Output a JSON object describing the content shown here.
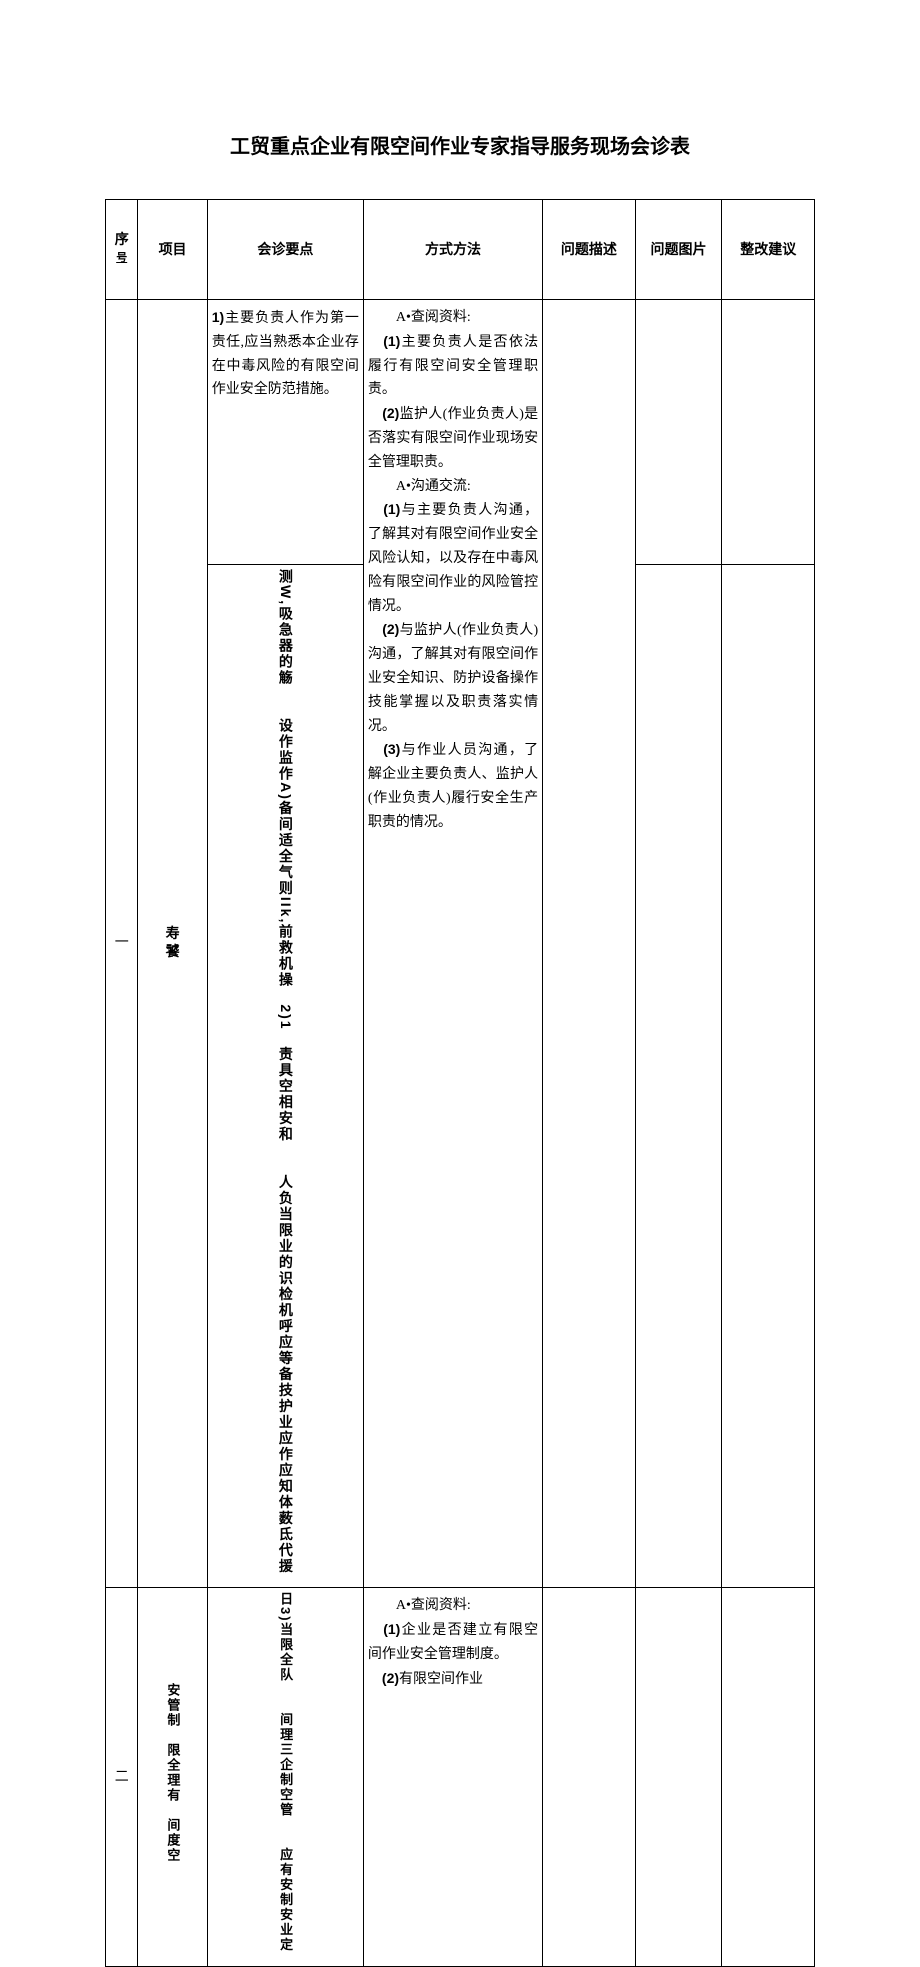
{
  "title": "工贸重点企业有限空间作业专家指导服务现场会诊表",
  "headers": {
    "seq": "序号",
    "project": "项目",
    "keypoints": "会诊要点",
    "method": "方式方法",
    "desc": "问题描述",
    "img": "问题图片",
    "suggest": "整改建议"
  },
  "rows": {
    "r1": {
      "seq": "一",
      "project_label": "寿饕",
      "keypoints_a": "<span class='num'>1)</span>主要负责人作为第一责任,应当熟悉本企业存在中毒风险的有限空间作业安全防范措施。",
      "keypoints_b": "测<span class='num'>W</span>,吸急器的觞　　设作监作<span class='num'>A)</span>备间适全气则<span class='num'>IIk</span>,前救机操　<span class='num'>2)1</span>　责具空相安和　　人负当限业的识检机呼应等备技护业应作应知体薮氐代援",
      "method": "　　A•查阅资料:<br>　<span class='num'>(1)</span>主要负责人是否依法履行有限空间安全管理职责。<br>　<span class='num'>(2)</span>监护人(作业负责人)是否落实有限空间作业现场安全管理职责。<br>　　A•沟通交流:<br>　<span class='num'>(1)</span>与主要负责人沟通，了解其对有限空间作业安全风险认知，以及存在中毒风险有限空间作业的风险管控情况。<br>　<span class='num'>(2)</span>与监护人(作业负责人)沟通，了解其对有限空间作业安全知识、防护设备操作技能掌握以及职责落实情况。<br>　<span class='num'>(3)</span>与作业人员沟通，了解企业主要负责人、监护人(作业负责人)履行安全生产职责的情况。"
    },
    "r2": {
      "seq": "二",
      "project_label": "安管制　限全理有　间度空",
      "keypoints": "日<span class='num'>3)</span>当限全队　　间理三企制空管　　应有安制安业定",
      "method": "　　A•查阅资料:<br>　<span class='num'>(1)</span>企业是否建立有限空间作业安全管理制度。<br>　<span class='num'>(2)</span>有限空间作业"
    }
  }
}
